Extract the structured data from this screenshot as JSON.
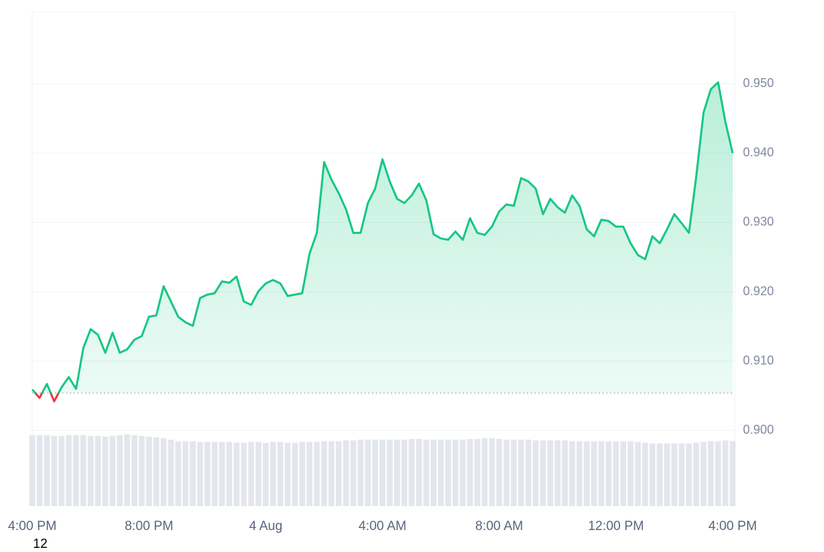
{
  "chart_data": {
    "type": "line",
    "categories": [
      "4:00 PM",
      null,
      null,
      null,
      null,
      null,
      null,
      null,
      null,
      null,
      null,
      null,
      null,
      null,
      null,
      null,
      "8:00 PM",
      null,
      null,
      null,
      null,
      null,
      null,
      null,
      null,
      null,
      null,
      null,
      null,
      null,
      null,
      null,
      "4 Aug",
      null,
      null,
      null,
      null,
      null,
      null,
      null,
      null,
      null,
      null,
      null,
      null,
      null,
      null,
      null,
      "4:00 AM",
      null,
      null,
      null,
      null,
      null,
      null,
      null,
      null,
      null,
      null,
      null,
      null,
      null,
      null,
      null,
      "8:00 AM",
      null,
      null,
      null,
      null,
      null,
      null,
      null,
      null,
      null,
      null,
      null,
      null,
      null,
      null,
      null,
      "12:00 PM",
      null,
      null,
      null,
      null,
      null,
      null,
      null,
      null,
      null,
      null,
      null,
      null,
      null,
      null,
      null,
      "4:00 PM"
    ],
    "values": [
      0.9059,
      0.9047,
      0.9067,
      0.9042,
      0.9062,
      0.9077,
      0.906,
      0.9119,
      0.9146,
      0.9138,
      0.9112,
      0.9141,
      0.9112,
      0.9117,
      0.9131,
      0.9136,
      0.9164,
      0.9166,
      0.9208,
      0.9186,
      0.9164,
      0.9156,
      0.9151,
      0.9191,
      0.9196,
      0.9198,
      0.9215,
      0.9213,
      0.9222,
      0.9186,
      0.9181,
      0.9201,
      0.9212,
      0.9217,
      0.9212,
      0.9194,
      0.9196,
      0.9198,
      0.9255,
      0.9285,
      0.9387,
      0.9362,
      0.9342,
      0.9319,
      0.9285,
      0.9285,
      0.9328,
      0.9349,
      0.9391,
      0.9359,
      0.9334,
      0.9328,
      0.9339,
      0.9356,
      0.9332,
      0.9283,
      0.9277,
      0.9275,
      0.9287,
      0.9275,
      0.9306,
      0.9285,
      0.9282,
      0.9294,
      0.9316,
      0.9326,
      0.9324,
      0.9364,
      0.9359,
      0.9349,
      0.9312,
      0.9334,
      0.9322,
      0.9314,
      0.9339,
      0.9324,
      0.929,
      0.928,
      0.9304,
      0.9302,
      0.9294,
      0.9294,
      0.927,
      0.9253,
      0.9247,
      0.928,
      0.927,
      0.929,
      0.9312,
      0.9299,
      0.9285,
      0.9366,
      0.9458,
      0.9492,
      0.9502,
      0.9445,
      0.94
    ],
    "volume": [
      94,
      94,
      94,
      93,
      93,
      94,
      94,
      94,
      93,
      93,
      92,
      93,
      94,
      95,
      94,
      93,
      92,
      91,
      90,
      88,
      86,
      86,
      86,
      85,
      85,
      85,
      85,
      85,
      84,
      84,
      85,
      85,
      84,
      85,
      85,
      84,
      84,
      85,
      85,
      85,
      86,
      86,
      86,
      87,
      87,
      88,
      88,
      88,
      88,
      88,
      88,
      88,
      89,
      89,
      88,
      88,
      88,
      88,
      88,
      88,
      89,
      89,
      90,
      90,
      89,
      88,
      88,
      88,
      88,
      87,
      87,
      87,
      87,
      87,
      86,
      86,
      86,
      86,
      86,
      86,
      86,
      86,
      86,
      85,
      84,
      83,
      83,
      83,
      83,
      83,
      83,
      84,
      85,
      86,
      86,
      87,
      86
    ],
    "volume_lim": [
      0,
      100
    ],
    "color": "#16c784",
    "down_color": "#ea3943",
    "volume_color": "#e3e6ec",
    "baseline": 0.9054,
    "ylim": [
      0.8891,
      0.9603
    ],
    "yticks": [
      {
        "value": 0.9,
        "label": "0.900"
      },
      {
        "value": 0.91,
        "label": "0.910"
      },
      {
        "value": 0.92,
        "label": "0.920"
      },
      {
        "value": 0.93,
        "label": "0.930"
      },
      {
        "value": 0.94,
        "label": "0.940"
      },
      {
        "value": 0.95,
        "label": "0.950"
      }
    ],
    "grid": true,
    "footnote": "12"
  }
}
